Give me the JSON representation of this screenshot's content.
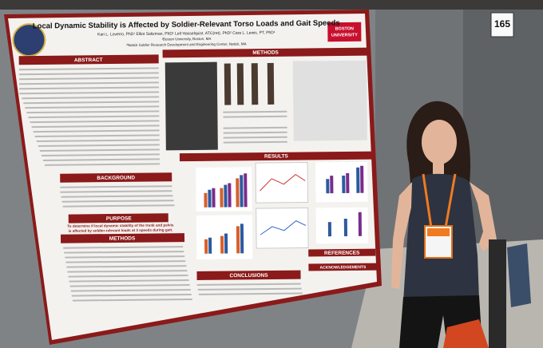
{
  "booth_number": "165",
  "poster": {
    "title": "Local Dynamic Stability is Affected by Soldier-Relevant Torso Loads and Gait Speeds",
    "authors": "Kari L. Loverro, PhD¹ Elliot Saltzman, PhD¹ Leif Hasselquist, ATC(ret), PhD² Cara L. Lewis, PT, PhD¹",
    "affiliations": [
      "¹Boston University, Boston, MA",
      "²Natick Soldier Research Development and Engineering Center, Natick, MA"
    ],
    "university_logo": [
      "BOSTON",
      "UNIVERSITY"
    ],
    "sections": [
      "ABSTRACT",
      "METHODS",
      "BACKGROUND",
      "PURPOSE",
      "METHODS",
      "RESULTS",
      "CONCLUSIONS",
      "REFERENCES",
      "ACKNOWLEDGEMENTS"
    ],
    "purpose_text": [
      "To determine if local dynamic stability of the trunk and pelvis",
      "is affected by soldier-relevant loads at 3 speeds during gait."
    ]
  }
}
